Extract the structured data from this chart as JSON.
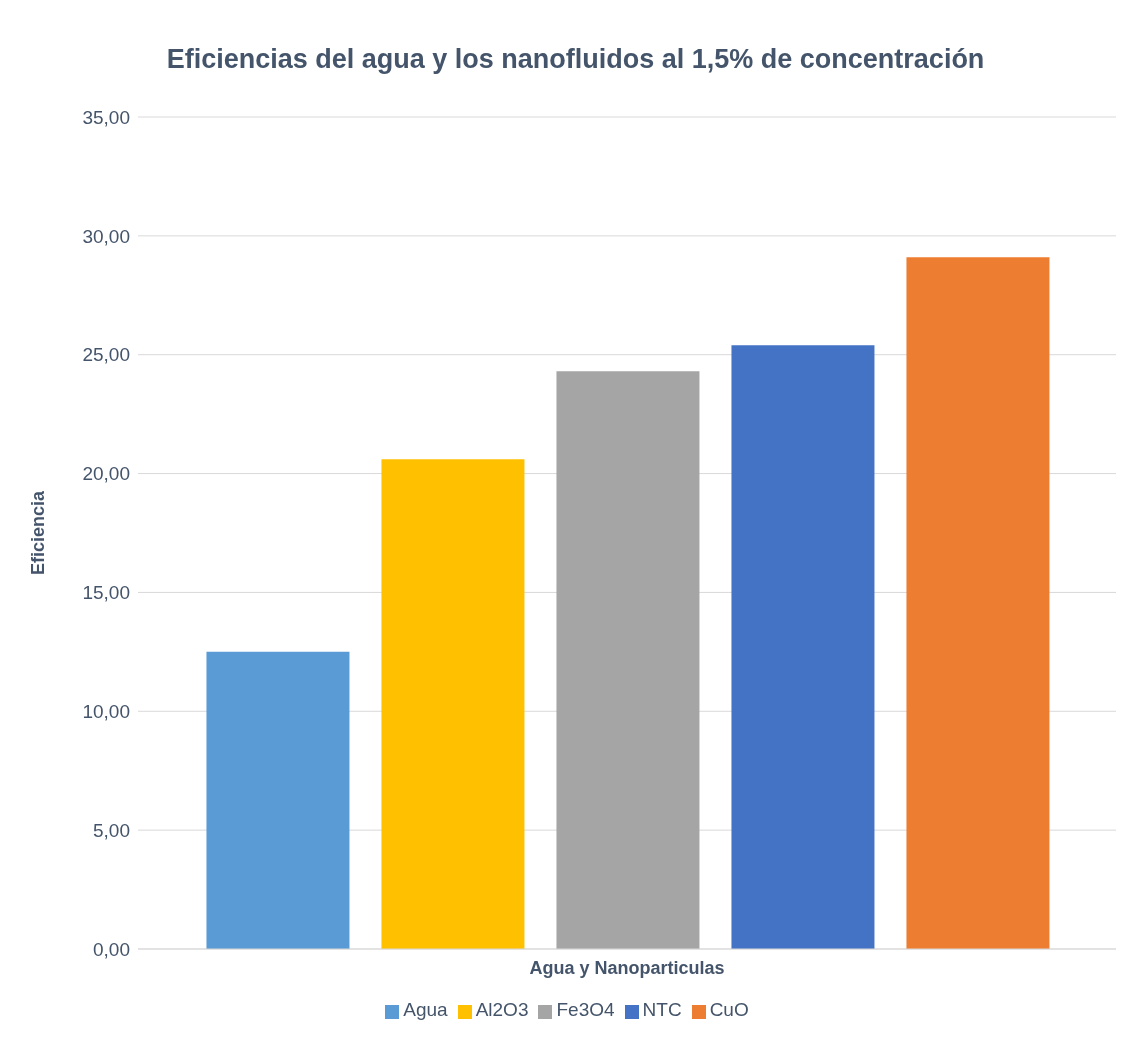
{
  "chart_data": {
    "type": "bar",
    "title": "Eficiencias del agua y los nanofluidos al 1,5% de concentración",
    "xlabel": "Agua y Nanoparticulas",
    "ylabel": "Eficiencia",
    "categories": [
      null
    ],
    "series": [
      {
        "name": "Agua",
        "color": "#5b9bd5",
        "values": [
          12.5
        ]
      },
      {
        "name": "Al2O3",
        "color": "#ffc000",
        "values": [
          20.6
        ]
      },
      {
        "name": "Fe3O4",
        "color": "#a5a5a5",
        "values": [
          24.3
        ]
      },
      {
        "name": "NTC",
        "color": "#4472c4",
        "values": [
          25.4
        ]
      },
      {
        "name": "CuO",
        "color": "#ed7d31",
        "values": [
          29.1
        ]
      }
    ],
    "ylim": [
      0,
      35
    ],
    "yticks": [
      {
        "value": 0,
        "label": "0,00"
      },
      {
        "value": 5,
        "label": "5,00"
      },
      {
        "value": 10,
        "label": "10,00"
      },
      {
        "value": 15,
        "label": "15,00"
      },
      {
        "value": 20,
        "label": "20,00"
      },
      {
        "value": 25,
        "label": "25,00"
      },
      {
        "value": 30,
        "label": "30,00"
      },
      {
        "value": 35,
        "label": "35,00"
      }
    ],
    "grid": "y",
    "legend": "bottom"
  }
}
